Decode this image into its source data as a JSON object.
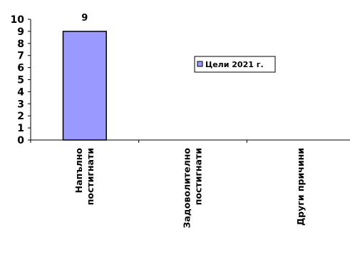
{
  "chart_data": {
    "type": "bar",
    "categories": [
      [
        "Напълно",
        "постигнати"
      ],
      [
        "Задоволително",
        "постигнати"
      ],
      [
        "Други причини"
      ]
    ],
    "series": [
      {
        "name": "Цели 2021 г.",
        "values": [
          9,
          0,
          0
        ],
        "color": "#9999ff"
      }
    ],
    "data_labels": [
      "9",
      "",
      ""
    ],
    "ylim": [
      0,
      10
    ],
    "yticks": [
      0,
      1,
      2,
      3,
      4,
      5,
      6,
      7,
      8,
      9,
      10
    ],
    "legend_position": "right",
    "grid": false,
    "title": "",
    "xlabel": "",
    "ylabel": ""
  }
}
